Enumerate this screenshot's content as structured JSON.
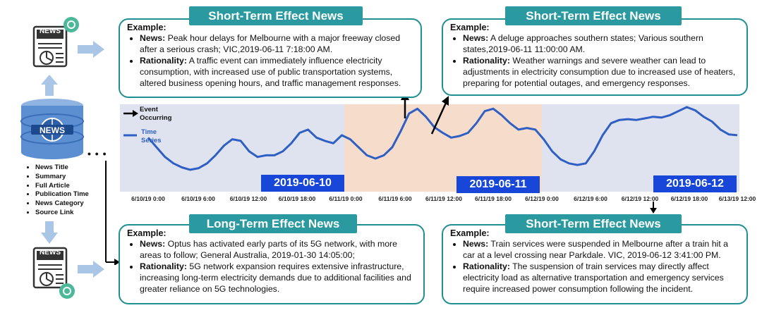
{
  "cards": [
    {
      "banner": "Short-Term Effect News",
      "example_label": "Example:",
      "news_label": "News:",
      "news_text": "Peak hour delays for Melbourne with a major freeway closed after a serious crash; VIC,2019-06-11  7:18:00 AM.",
      "rationality_label": "Rationality:",
      "rationality_text": "A traffic event can immediately influence electricity consumption, with increased use of public transportation systems, altered business opening hours, and traffic management responses."
    },
    {
      "banner": "Short-Term Effect News",
      "example_label": "Example:",
      "news_label": "News:",
      "news_text": "A deluge approaches southern states; Various southern states,2019-06-11  11:00:00 AM.",
      "rationality_label": "Rationality:",
      "rationality_text": "Weather warnings and severe weather can lead to adjustments in electricity consumption due to increased use of heaters, preparing for potential outages, and emergency responses."
    },
    {
      "banner": "Long-Term Effect News",
      "example_label": "Example:",
      "news_label": "News:",
      "news_text": "Optus has activated early parts of its 5G network, with more areas to follow; General Australia, 2019-01-30 14:05:00;",
      "rationality_label": "Rationality:",
      "rationality_text": "5G network expansion requires extensive infrastructure, increasing long-term electricity demands due to additional facilities and greater reliance on 5G technologies."
    },
    {
      "banner": "Short-Term Effect News",
      "example_label": "Example:",
      "news_label": "News:",
      "news_text": "Train services were suspended in Melbourne after a train hit a car at a level crossing near Parkdale. VIC, 2019-06-12  3:41:00 PM.",
      "rationality_label": "Rationality:",
      "rationality_text": "The suspension of train services may directly affect electricity load as alternative transportation and emergency services require increased power consumption following the incident."
    }
  ],
  "left_panel": {
    "news_icon_label": "NEWS",
    "db_label": "NEWS",
    "bottom_icon_label": "NEWS",
    "fields": [
      "News Title",
      "Summary",
      "Full Article",
      "Publication Time",
      "News Category",
      "Source Link"
    ],
    "ellipsis": "• • •"
  },
  "legend": {
    "event_label": "Event Occurring",
    "series_label": "Time Series"
  },
  "dates": [
    "2019-06-10",
    "2019-06-11",
    "2019-06-12"
  ],
  "x_ticks": [
    "6/10/19 0:00",
    "6/10/19 6:00",
    "6/10/19 12:00",
    "6/10/19 18:00",
    "6/11/19 0:00",
    "6/11/19 6:00",
    "6/11/19 12:00",
    "6/11/19 18:00",
    "6/12/19 0:00",
    "6/12/19 6:00",
    "6/12/19 12:00",
    "6/12/19 18:00",
    "6/13/19 12:00"
  ],
  "colors": {
    "teal": "#2a9aa0",
    "plot_bg_day": "#dfe3ef",
    "plot_bg_highlight": "#f6dccb",
    "series": "#2f5fc4",
    "date_box": "#1746d8"
  },
  "chart_data": {
    "type": "line",
    "series": [
      {
        "name": "Time Series",
        "values": [
          0.62,
          0.5,
          0.38,
          0.3,
          0.25,
          0.22,
          0.24,
          0.3,
          0.4,
          0.52,
          0.6,
          0.58,
          0.45,
          0.38,
          0.4,
          0.4,
          0.45,
          0.55,
          0.68,
          0.72,
          0.62,
          0.58,
          0.55,
          0.65,
          0.6,
          0.5,
          0.4,
          0.36,
          0.4,
          0.5,
          0.7,
          0.92,
          0.98,
          0.88,
          0.75,
          0.68,
          0.62,
          0.64,
          0.68,
          0.8,
          0.95,
          0.98,
          0.9,
          0.8,
          0.72,
          0.74,
          0.72,
          0.6,
          0.45,
          0.35,
          0.3,
          0.28,
          0.3,
          0.45,
          0.65,
          0.8,
          0.84,
          0.85,
          0.84,
          0.86,
          0.88,
          0.87,
          0.9,
          0.95,
          1.0,
          0.96,
          0.88,
          0.82,
          0.72,
          0.66,
          0.65
        ]
      }
    ],
    "events": [
      "2019-06-11 07:18",
      "2019-06-11 11:00",
      "2019-06-12 15:41"
    ]
  }
}
